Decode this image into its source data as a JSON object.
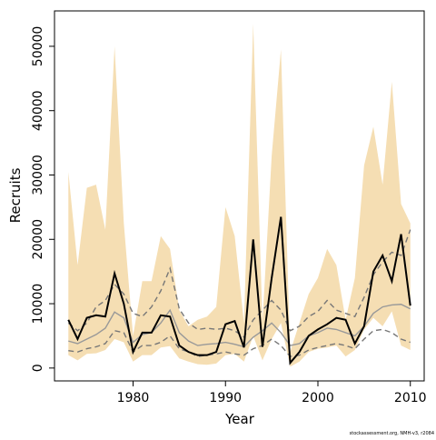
{
  "chart_data": {
    "type": "line",
    "x_label": "Year",
    "y_label": "Recruits",
    "footnote": "stockassessment.org, NMH-v3, r2084",
    "x": [
      1973,
      1974,
      1975,
      1976,
      1977,
      1978,
      1979,
      1980,
      1981,
      1982,
      1983,
      1984,
      1985,
      1986,
      1987,
      1988,
      1989,
      1990,
      1991,
      1992,
      1993,
      1994,
      1995,
      1996,
      1997,
      1998,
      1999,
      2000,
      2001,
      2002,
      2003,
      2004,
      2005,
      2006,
      2007,
      2008,
      2009,
      2010
    ],
    "xlim": [
      1971.5,
      2011.5
    ],
    "xticks": [
      1980,
      1990,
      2000,
      2010
    ],
    "ylim": [
      -2000,
      55500
    ],
    "yticks": [
      0,
      10000,
      20000,
      30000,
      40000,
      50000
    ],
    "band": {
      "color": "#f5deb3",
      "upper": [
        30500,
        16000,
        28000,
        28500,
        21500,
        50000,
        22500,
        5000,
        13500,
        13500,
        20500,
        18500,
        9000,
        6500,
        7500,
        8000,
        9500,
        25000,
        20500,
        7000,
        53500,
        7000,
        33000,
        49500,
        2500,
        7000,
        11500,
        14000,
        18500,
        16000,
        7500,
        14000,
        31500,
        37500,
        28500,
        44500,
        25500,
        22500
      ],
      "lower": [
        2000,
        1200,
        2200,
        2300,
        2800,
        4500,
        4000,
        1000,
        2000,
        2000,
        3200,
        3400,
        1500,
        1000,
        600,
        500,
        700,
        2000,
        2200,
        1000,
        5000,
        1200,
        4500,
        7000,
        200,
        1000,
        2500,
        3000,
        3200,
        3500,
        1800,
        2800,
        6000,
        7800,
        6500,
        8800,
        3500,
        2800
      ]
    },
    "series": [
      {
        "color": "#777777",
        "dash": true,
        "values": [
          7000,
          5800,
          7000,
          9500,
          10500,
          13000,
          11500,
          8500,
          8000,
          9500,
          12000,
          15500,
          9200,
          7000,
          6000,
          6200,
          6000,
          6200,
          5800,
          4800,
          7500,
          9000,
          10500,
          9000,
          5800,
          6500,
          8000,
          8800,
          10500,
          9000,
          8500,
          8000,
          11000,
          14500,
          16500,
          18000,
          17500,
          21500
        ]
      },
      {
        "color": "#777777",
        "dash": true,
        "values": [
          2700,
          2500,
          3000,
          3300,
          3800,
          5800,
          5500,
          2500,
          3500,
          3500,
          4000,
          5000,
          3000,
          2500,
          1800,
          2000,
          2200,
          2500,
          2200,
          2000,
          3000,
          3500,
          4500,
          3500,
          1800,
          2000,
          2800,
          3200,
          3500,
          3800,
          3500,
          3000,
          4500,
          5800,
          6000,
          5500,
          4500,
          4000
        ]
      },
      {
        "color": "#999999",
        "dash": false,
        "values": [
          4200,
          3800,
          4500,
          5200,
          6200,
          8700,
          7800,
          4000,
          5200,
          5500,
          7000,
          9000,
          5500,
          4200,
          3500,
          3700,
          3800,
          4000,
          3700,
          3300,
          4800,
          5800,
          7000,
          5500,
          3500,
          3800,
          5000,
          5500,
          6200,
          6000,
          5500,
          5000,
          6500,
          8500,
          9500,
          9800,
          9900,
          9200
        ]
      },
      {
        "color": "#000000",
        "dash": false,
        "values": [
          7500,
          4500,
          7800,
          8200,
          8000,
          14700,
          10000,
          2500,
          5500,
          5500,
          8200,
          8000,
          3500,
          2500,
          2000,
          2000,
          2500,
          6800,
          7300,
          3200,
          20000,
          3300,
          14000,
          23500,
          800,
          2500,
          5000,
          6000,
          6800,
          7800,
          7500,
          3800,
          6500,
          15000,
          17500,
          13500,
          20800,
          9700
        ]
      }
    ]
  }
}
